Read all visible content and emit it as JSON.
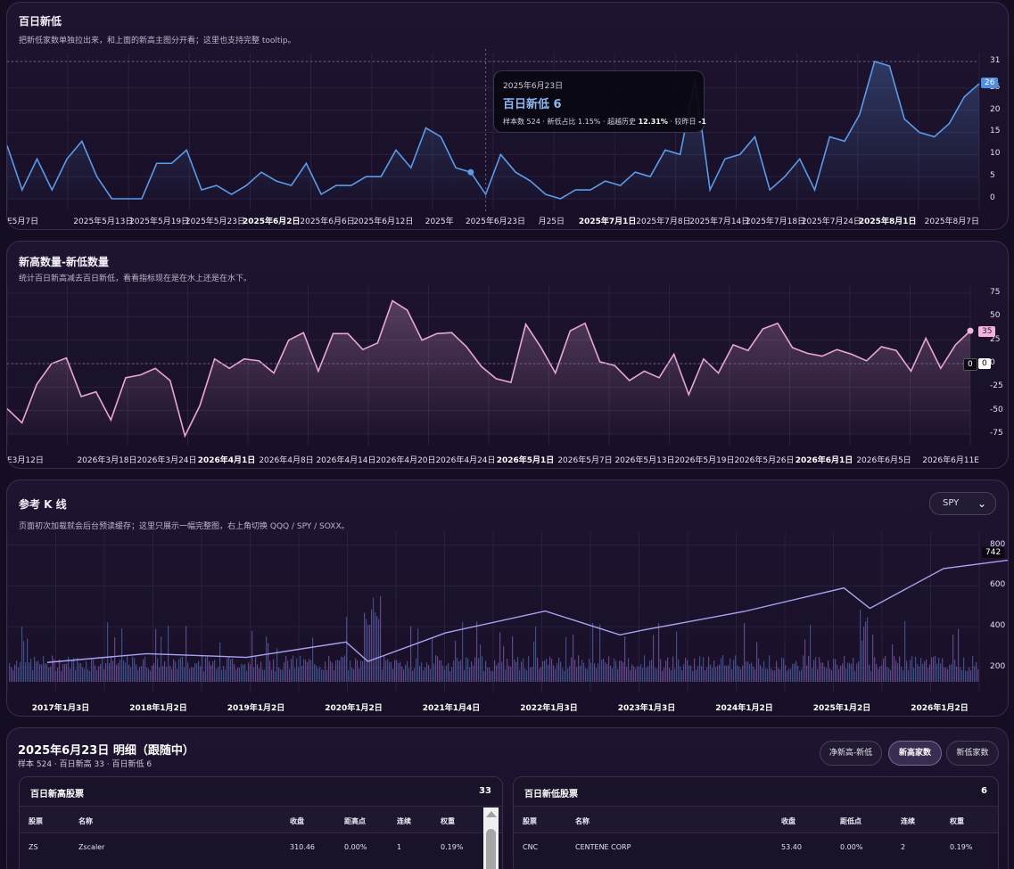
{
  "panel1": {
    "title": "百日新低",
    "subtitle": "把新低家数单独拉出来，和上面的新高主图分开看；这里也支持完整 tooltip。",
    "y_ticks": [
      "31",
      "25",
      "20",
      "15",
      "10",
      "5",
      "0"
    ],
    "last_value_tag": "26",
    "x_labels": [
      {
        "text": "E5月7日",
        "bold": false
      },
      {
        "text": "2025年5月13日",
        "bold": false
      },
      {
        "text": "2025年5月19日",
        "bold": false
      },
      {
        "text": "2025年5月23日",
        "bold": false
      },
      {
        "text": "2025年6月2日",
        "bold": true
      },
      {
        "text": "2025年6月6日",
        "bold": false
      },
      {
        "text": "2025年6月12日",
        "bold": false
      },
      {
        "text": "2025年",
        "bold": false
      },
      {
        "text": "2025年6月23日",
        "bold": false
      },
      {
        "text": "月25日",
        "bold": false
      },
      {
        "text": "2025年7月1日",
        "bold": true
      },
      {
        "text": "2025年7月8日",
        "bold": false
      },
      {
        "text": "2025年7月14日",
        "bold": false
      },
      {
        "text": "2025年7月18日",
        "bold": false
      },
      {
        "text": "2025年7月24日",
        "bold": false
      },
      {
        "text": "2025年8月1日",
        "bold": true
      },
      {
        "text": "2025年8月7日",
        "bold": false
      }
    ],
    "tooltip": {
      "date": "2025年6月23日",
      "headline": "百日新低 6",
      "stats_prefix": "样本数 524 · 新低占比 1.15% · 超越历史 ",
      "stats_pct": "12.31%",
      "stats_mid": " · 较昨日 ",
      "stats_delta": "-1"
    }
  },
  "panel2": {
    "title": "新高数量-新低数量",
    "subtitle": "统计百日新高减去百日新低，看看指标现在是在水上还是在水下。",
    "y_ticks": [
      "75",
      "50",
      "25",
      "0",
      "-25",
      "-50",
      "-75"
    ],
    "last_value_tag": "35",
    "zero_tag": "0",
    "x_labels": [
      {
        "text": "E3月12日",
        "bold": false
      },
      {
        "text": "2026年3月18日",
        "bold": false
      },
      {
        "text": "2026年3月24日",
        "bold": false
      },
      {
        "text": "2026年4月1日",
        "bold": true
      },
      {
        "text": "2026年4月8日",
        "bold": false
      },
      {
        "text": "2026年4月14日",
        "bold": false
      },
      {
        "text": "2026年4月20日",
        "bold": false
      },
      {
        "text": "2026年4月24日",
        "bold": false
      },
      {
        "text": "2026年5月1日",
        "bold": true
      },
      {
        "text": "2026年5月7日",
        "bold": false
      },
      {
        "text": "2026年5月13日",
        "bold": false
      },
      {
        "text": "2026年5月19日",
        "bold": false
      },
      {
        "text": "2026年5月26日",
        "bold": false
      },
      {
        "text": "2026年6月1日",
        "bold": true
      },
      {
        "text": "2026年6月5日",
        "bold": false
      },
      {
        "text": "2026年6月11E",
        "bold": false
      }
    ]
  },
  "panel3": {
    "title": "参考 K 线",
    "subtitle": "页面初次加载就会后台预读缓存；这里只展示一幅完整图，右上角切换 QQQ / SPY / SOXX。",
    "select_value": "SPY",
    "y_ticks": [
      "800",
      "600",
      "400",
      "200"
    ],
    "last_price_tag": "742",
    "x_labels": [
      {
        "text": "2017年1月3日",
        "bold": true
      },
      {
        "text": "2018年1月2日",
        "bold": true
      },
      {
        "text": "2019年1月2日",
        "bold": true
      },
      {
        "text": "2020年1月2日",
        "bold": true
      },
      {
        "text": "2021年1月4日",
        "bold": true
      },
      {
        "text": "2022年1月3日",
        "bold": true
      },
      {
        "text": "2023年1月3日",
        "bold": true
      },
      {
        "text": "2024年1月2日",
        "bold": true
      },
      {
        "text": "2025年1月2日",
        "bold": true
      },
      {
        "text": "2026年1月2日",
        "bold": true
      }
    ]
  },
  "detail": {
    "title": "2025年6月23日 明细（跟随中）",
    "subtitle": "样本 524 · 百日新高 33 · 百日新低 6",
    "buttons": [
      "净新高-新低",
      "新高家数",
      "新低家数"
    ],
    "active_button": "新高家数",
    "highs": {
      "title": "百日新高股票",
      "count": "33",
      "columns": [
        "股票",
        "名称",
        "收盘",
        "距高点",
        "连续",
        "权重"
      ],
      "rows": [
        [
          "ZS",
          "Zscaler",
          "310.46",
          "0.00%",
          "1",
          "0.19%"
        ]
      ]
    },
    "lows": {
      "title": "百日新低股票",
      "count": "6",
      "columns": [
        "股票",
        "名称",
        "收盘",
        "距低点",
        "连续",
        "权重"
      ],
      "rows": [
        [
          "CNC",
          "CENTENE CORP",
          "53.40",
          "0.00%",
          "2",
          "0.19%"
        ]
      ]
    }
  },
  "chart_data": [
    {
      "type": "area",
      "title": "百日新低",
      "ylim": [
        0,
        31
      ],
      "highlight": {
        "label": "2025年6月23日",
        "value": 6
      },
      "values": [
        12,
        2,
        9,
        2,
        9,
        13,
        5,
        0,
        0,
        0,
        8,
        8,
        11,
        2,
        3,
        1,
        3,
        6,
        4,
        3,
        8,
        1,
        3,
        3,
        5,
        5,
        11,
        7,
        16,
        14,
        7,
        6,
        1,
        10,
        6,
        4,
        1,
        0,
        2,
        2,
        4,
        3,
        6,
        5,
        11,
        10,
        27,
        2,
        9,
        10,
        14,
        2,
        5,
        9,
        2,
        14,
        13,
        19,
        31,
        30,
        18,
        15,
        14,
        17,
        23,
        26
      ]
    },
    {
      "type": "area",
      "title": "新高数量-新低数量",
      "ylim": [
        -75,
        75
      ],
      "values": [
        -48,
        -63,
        -22,
        0,
        6,
        -35,
        -30,
        -60,
        -15,
        -12,
        -5,
        -18,
        -77,
        -45,
        5,
        -5,
        5,
        3,
        -10,
        25,
        33,
        -8,
        32,
        32,
        15,
        22,
        67,
        57,
        25,
        32,
        33,
        18,
        -3,
        -16,
        -20,
        42,
        18,
        -10,
        35,
        43,
        2,
        -2,
        -18,
        -8,
        -15,
        10,
        -33,
        5,
        -10,
        20,
        14,
        37,
        43,
        17,
        11,
        8,
        15,
        10,
        3,
        18,
        14,
        -8,
        27,
        -5,
        20,
        35
      ]
    },
    {
      "type": "line",
      "title": "参考 K 线",
      "series": [
        {
          "name": "SPY",
          "x": [
            "2017年1月3日",
            "2018年1月2日",
            "2019年1月2日",
            "2020年1月2日",
            "2020年3月20日",
            "2021年1月4日",
            "2022年1月3日",
            "2022年10月3日",
            "2023年1月3日",
            "2024年1月2日",
            "2025年1月2日",
            "2025年4月8日",
            "2026年1月2日",
            "2026年6月11日"
          ],
          "values": [
            225,
            268,
            250,
            325,
            230,
            370,
            477,
            360,
            385,
            475,
            590,
            490,
            685,
            742
          ]
        }
      ],
      "ylim": [
        130,
        820
      ]
    }
  ]
}
